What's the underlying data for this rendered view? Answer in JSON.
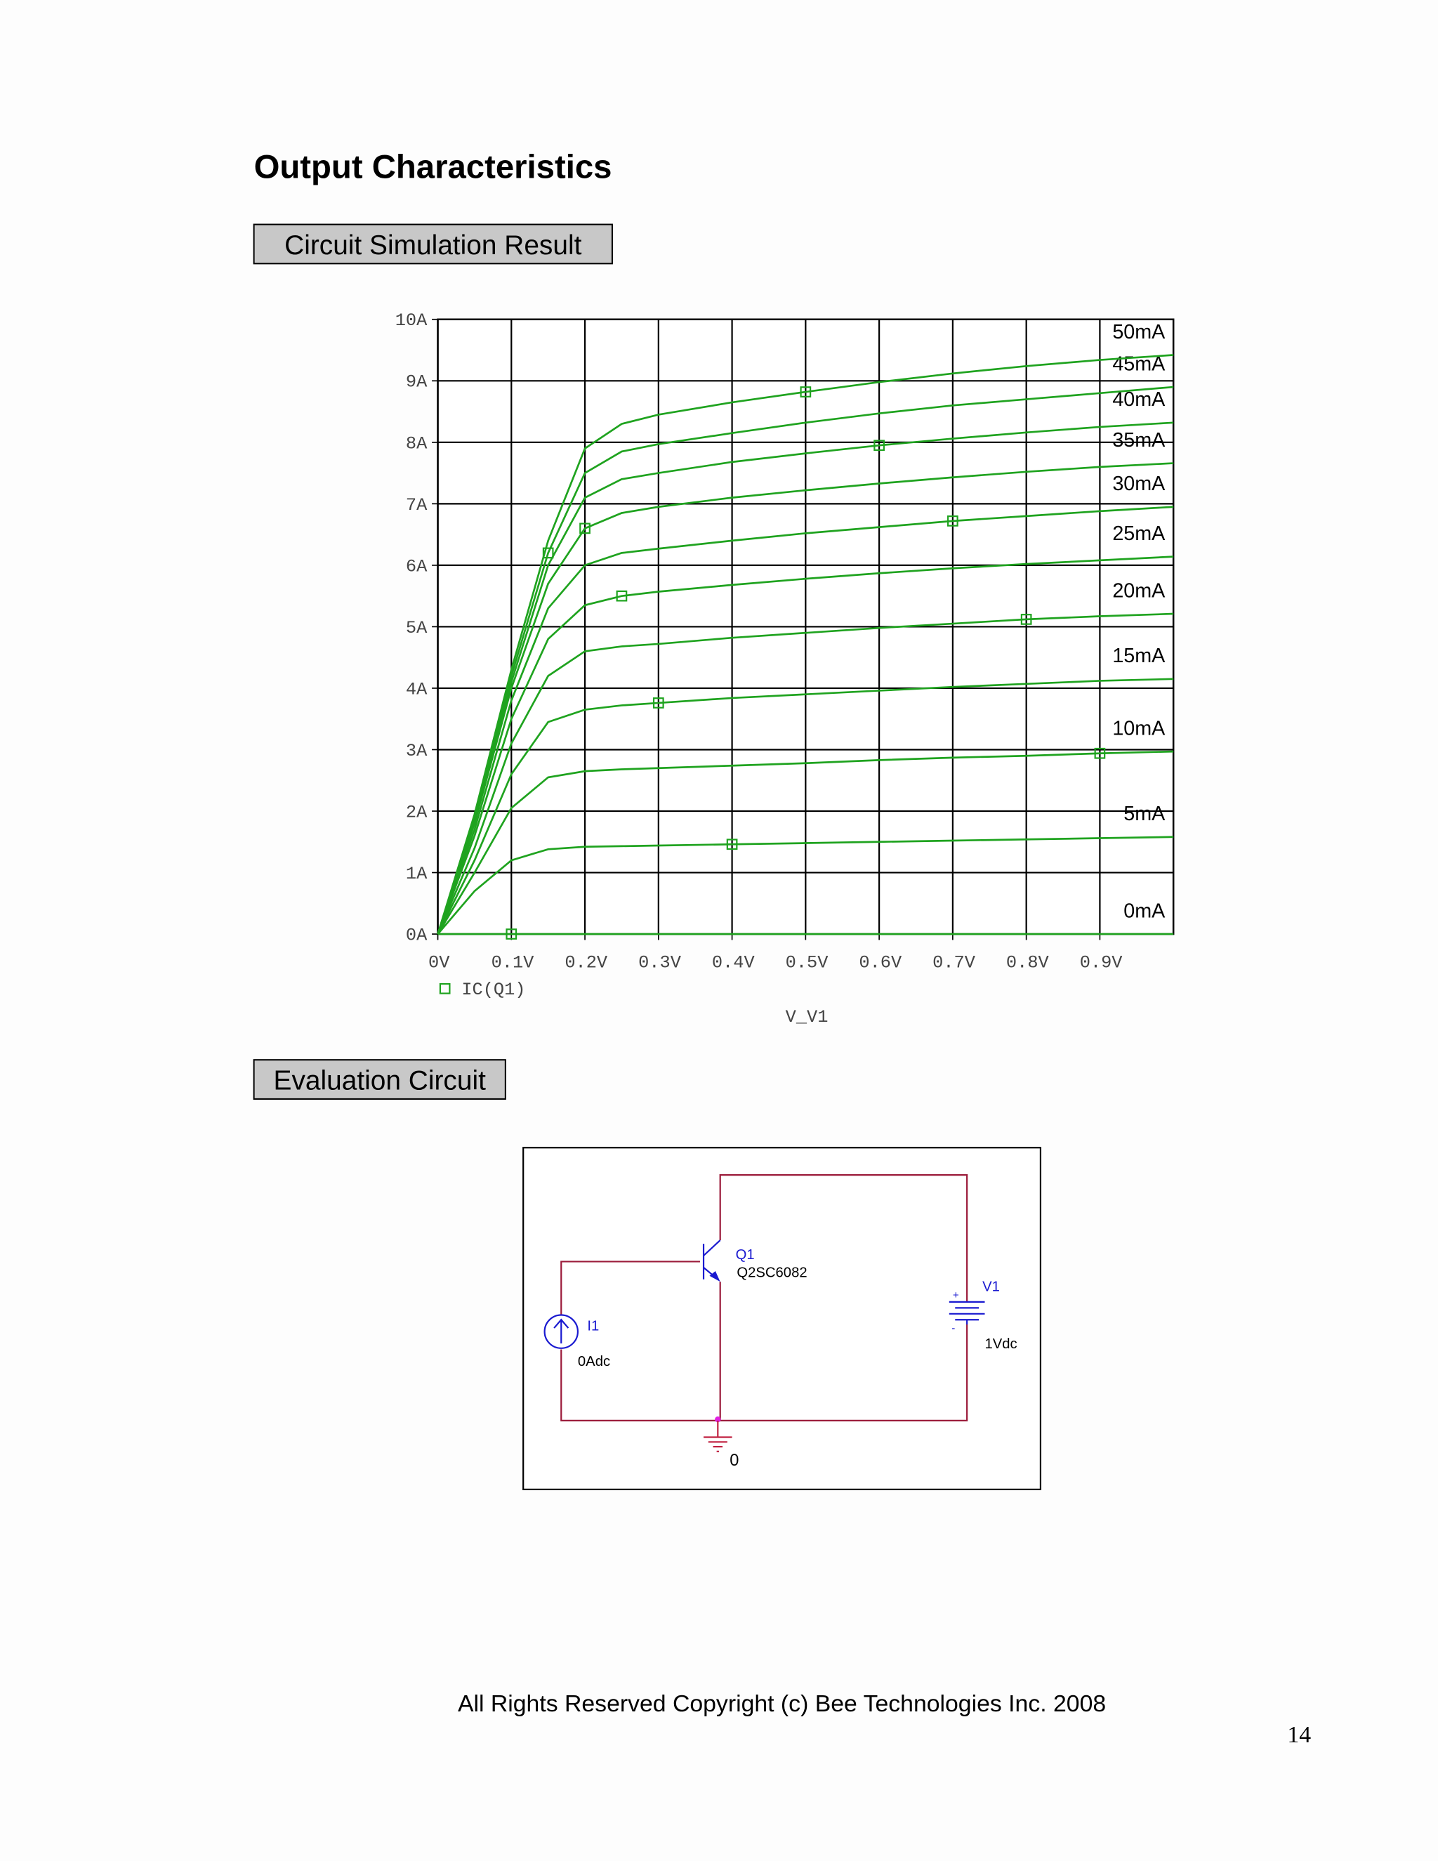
{
  "title": "Output Characteristics",
  "sections": [
    "Circuit Simulation Result",
    "Evaluation Circuit"
  ],
  "chart_data": {
    "type": "line",
    "legend": "IC(Q1)",
    "xlabel": "V_V1",
    "x": [
      0,
      0.05,
      0.1,
      0.15,
      0.2,
      0.25,
      0.3,
      0.4,
      0.5,
      0.6,
      0.7,
      0.8,
      0.9,
      1.0
    ],
    "xlim": [
      0,
      1
    ],
    "ylim": [
      0,
      10
    ],
    "xticks": [
      {
        "value": 0,
        "label": "0V"
      },
      {
        "value": 0.1,
        "label": "0.1V"
      },
      {
        "value": 0.2,
        "label": "0.2V"
      },
      {
        "value": 0.3,
        "label": "0.3V"
      },
      {
        "value": 0.4,
        "label": "0.4V"
      },
      {
        "value": 0.5,
        "label": "0.5V"
      },
      {
        "value": 0.6,
        "label": "0.6V"
      },
      {
        "value": 0.7,
        "label": "0.7V"
      },
      {
        "value": 0.8,
        "label": "0.8V"
      },
      {
        "value": 0.9,
        "label": "0.9V"
      }
    ],
    "yticks": [
      {
        "value": 0,
        "label": "0A"
      },
      {
        "value": 1,
        "label": "1A"
      },
      {
        "value": 2,
        "label": "2A"
      },
      {
        "value": 3,
        "label": "3A"
      },
      {
        "value": 4,
        "label": "4A"
      },
      {
        "value": 5,
        "label": "5A"
      },
      {
        "value": 6,
        "label": "6A"
      },
      {
        "value": 7,
        "label": "7A"
      },
      {
        "value": 8,
        "label": "8A"
      },
      {
        "value": 9,
        "label": "9A"
      },
      {
        "value": 10,
        "label": "10A"
      }
    ],
    "grid": true,
    "series": [
      {
        "name": "0mA",
        "color": "#1fa31f",
        "values": [
          0,
          0,
          0,
          0,
          0,
          0,
          0,
          0,
          0,
          0,
          0,
          0,
          0,
          0
        ]
      },
      {
        "name": "5mA",
        "color": "#1fa31f",
        "values": [
          0,
          0.7,
          1.2,
          1.38,
          1.42,
          1.43,
          1.44,
          1.46,
          1.48,
          1.5,
          1.52,
          1.54,
          1.56,
          1.58
        ]
      },
      {
        "name": "10mA",
        "color": "#1fa31f",
        "values": [
          0,
          1.0,
          2.05,
          2.55,
          2.65,
          2.68,
          2.7,
          2.74,
          2.78,
          2.83,
          2.87,
          2.9,
          2.94,
          2.97
        ]
      },
      {
        "name": "15mA",
        "color": "#1fa31f",
        "values": [
          0,
          1.2,
          2.6,
          3.45,
          3.65,
          3.72,
          3.76,
          3.84,
          3.9,
          3.96,
          4.02,
          4.07,
          4.12,
          4.15
        ]
      },
      {
        "name": "20mA",
        "color": "#1fa31f",
        "values": [
          0,
          1.4,
          3.1,
          4.2,
          4.6,
          4.68,
          4.72,
          4.82,
          4.9,
          4.98,
          5.05,
          5.12,
          5.17,
          5.21
        ]
      },
      {
        "name": "25mA",
        "color": "#1fa31f",
        "values": [
          0,
          1.6,
          3.5,
          4.8,
          5.35,
          5.5,
          5.57,
          5.68,
          5.78,
          5.87,
          5.95,
          6.02,
          6.08,
          6.14
        ]
      },
      {
        "name": "30mA",
        "color": "#1fa31f",
        "values": [
          0,
          1.7,
          3.8,
          5.3,
          6.0,
          6.2,
          6.27,
          6.4,
          6.52,
          6.62,
          6.72,
          6.8,
          6.88,
          6.95
        ]
      },
      {
        "name": "35mA",
        "color": "#1fa31f",
        "values": [
          0,
          1.8,
          4.0,
          5.7,
          6.6,
          6.85,
          6.95,
          7.1,
          7.22,
          7.33,
          7.43,
          7.52,
          7.6,
          7.66
        ]
      },
      {
        "name": "40mA",
        "color": "#1fa31f",
        "values": [
          0,
          1.85,
          4.1,
          6.0,
          7.1,
          7.4,
          7.5,
          7.68,
          7.82,
          7.95,
          8.06,
          8.16,
          8.25,
          8.32
        ]
      },
      {
        "name": "45mA",
        "color": "#1fa31f",
        "values": [
          0,
          1.9,
          4.2,
          6.2,
          7.5,
          7.85,
          7.97,
          8.15,
          8.32,
          8.47,
          8.6,
          8.7,
          8.8,
          8.9
        ]
      },
      {
        "name": "50mA",
        "color": "#1fa31f",
        "values": [
          0,
          1.95,
          4.3,
          6.4,
          7.9,
          8.3,
          8.45,
          8.65,
          8.82,
          8.98,
          9.12,
          9.24,
          9.34,
          9.42
        ]
      }
    ]
  },
  "circuit": {
    "q_ref": "Q1",
    "q_model": "Q2SC6082",
    "i_ref": "I1",
    "i_value": "0Adc",
    "v_ref": "V1",
    "v_value": "1Vdc",
    "ground": "0"
  },
  "footer": "All Rights Reserved Copyright (c) Bee Technologies Inc. 2008",
  "page_number": 14
}
